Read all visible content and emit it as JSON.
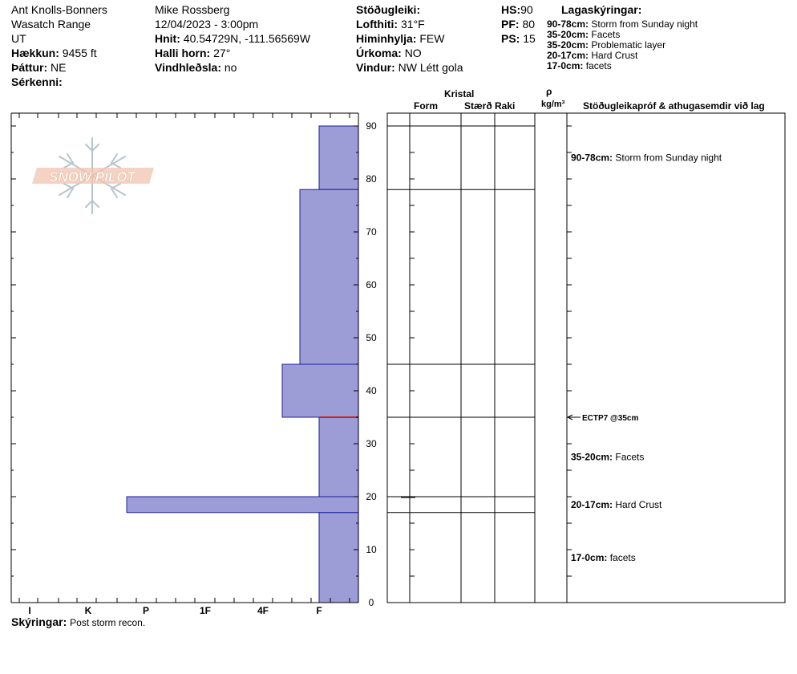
{
  "header": {
    "location": "Ant Knolls-Bonners",
    "range": "Wasatch Range",
    "state": "UT",
    "elevation_label": "Hækkun:",
    "elevation_value": "9455 ft",
    "aspect_label": "Þáttur:",
    "aspect_value": "NE",
    "features_label": "Sérkenni:",
    "observer": "Mike Rossberg",
    "datetime": "12/04/2023 - 3:00pm",
    "coords_label": "Hnit:",
    "coords_value": "40.54729N, -111.56569W",
    "slope_label": "Halli horn:",
    "slope_value": "27°",
    "windload_label": "Vindhleðsla:",
    "windload_value": "no",
    "stability_label": "Stöðugleiki:",
    "airtemp_label": "Lofthiti:",
    "airtemp_value": "31°F",
    "sky_label": "Himinhylja:",
    "sky_value": "FEW",
    "precip_label": "Úrkoma:",
    "precip_value": "NO",
    "wind_label": "Vindur:",
    "wind_value": "NW Létt gola",
    "hs_label": "HS:",
    "hs_value": "90",
    "pf_label": "PF:",
    "pf_value": "80",
    "ps_label": "PS:",
    "ps_value": "15",
    "legend_title": "Lagaskýringar:",
    "legend": [
      {
        "range": "90-78cm:",
        "text": "Storm from Sunday night"
      },
      {
        "range": "35-20cm:",
        "text": "Facets"
      },
      {
        "range": "35-20cm:",
        "text": "Problematic layer"
      },
      {
        "range": "20-17cm:",
        "text": "Hard Crust"
      },
      {
        "range": "17-0cm:",
        "text": "facets"
      }
    ]
  },
  "logo_text": "SNOW PILOT",
  "columns": {
    "crystal": "Kristal",
    "form": "Form",
    "size": "Stærð",
    "moisture": "Raki",
    "rho": "ρ",
    "density_unit": "kg/m³",
    "comments": "Stöðugleikapróf & athugasemdir við lag"
  },
  "chart_data": {
    "type": "bar",
    "orientation": "horizontal",
    "x_categories": [
      "I",
      "K",
      "P",
      "1F",
      "4F",
      "F"
    ],
    "y_ticks": [
      0,
      10,
      20,
      30,
      40,
      50,
      60,
      70,
      80,
      90
    ],
    "ylim": [
      0,
      90
    ],
    "layers": [
      {
        "top": 90,
        "bottom": 78,
        "hardness": "F"
      },
      {
        "top": 78,
        "bottom": 45,
        "hardness": "F+"
      },
      {
        "top": 45,
        "bottom": 35,
        "hardness": "4F-"
      },
      {
        "top": 35,
        "bottom": 20,
        "hardness": "F"
      },
      {
        "top": 20,
        "bottom": 17,
        "hardness": "P+"
      },
      {
        "top": 17,
        "bottom": 0,
        "hardness": "F"
      }
    ],
    "layer_boundaries": [
      90,
      78,
      45,
      35,
      20,
      17
    ],
    "problem_layer_depth": 35,
    "comments": [
      {
        "depth": 84,
        "range": "90-78cm:",
        "text": "Storm from Sunday night"
      },
      {
        "depth": 27.5,
        "range": "35-20cm:",
        "text": "Facets"
      },
      {
        "depth": 18.5,
        "range": "20-17cm:",
        "text": "Hard Crust"
      },
      {
        "depth": 8.5,
        "range": "17-0cm:",
        "text": "facets"
      }
    ],
    "test": {
      "depth": 35,
      "label": "ECTP7 @35cm"
    }
  },
  "notes_label": "Skýringar:",
  "notes_value": "Post storm recon."
}
